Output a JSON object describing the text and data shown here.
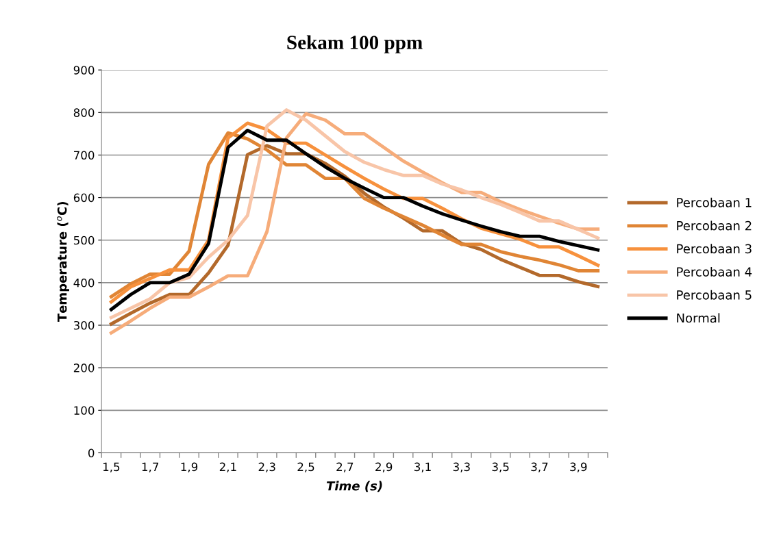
{
  "chart_data": {
    "type": "line",
    "title": "Sekam 100 ppm",
    "xlabel": "Time (s)",
    "ylabel": "Temperature ($^{o}$C)",
    "categories": [
      "1,5",
      null,
      "1,7",
      null,
      "1,9",
      null,
      "2,1",
      null,
      "2,3",
      null,
      "2,5",
      null,
      "2,7",
      null,
      "2,9",
      null,
      "3,1",
      null,
      "3,3",
      null,
      "3,5",
      null,
      "3,7",
      null,
      "3,9",
      null
    ],
    "series": [
      {
        "name": "Percobaan 1",
        "color": "#b3692b",
        "values": [
          303,
          328,
          352,
          372,
          372,
          423,
          488,
          701,
          722,
          703,
          703,
          680,
          650,
          610,
          578,
          552,
          522,
          522,
          492,
          478,
          455,
          436,
          417,
          417,
          402,
          391
        ]
      },
      {
        "name": "Percobaan 2",
        "color": "#e08535",
        "values": [
          367,
          397,
          420,
          420,
          474,
          678,
          752,
          738,
          712,
          677,
          677,
          645,
          645,
          598,
          575,
          555,
          535,
          512,
          490,
          490,
          473,
          462,
          453,
          442,
          428,
          428
        ]
      },
      {
        "name": "Percobaan 3",
        "color": "#f7913d",
        "values": [
          355,
          390,
          410,
          430,
          430,
          500,
          740,
          775,
          760,
          728,
          728,
          700,
          672,
          645,
          620,
          598,
          598,
          575,
          550,
          528,
          515,
          502,
          484,
          484,
          463,
          441
        ]
      },
      {
        "name": "Percobaan 4",
        "color": "#f6ac7a",
        "values": [
          282,
          310,
          340,
          366,
          366,
          390,
          416,
          416,
          520,
          740,
          797,
          782,
          750,
          750,
          718,
          686,
          660,
          635,
          612,
          612,
          590,
          572,
          556,
          540,
          526,
          526
        ]
      },
      {
        "name": "Percobaan 5",
        "color": "#f8c5a8",
        "values": [
          318,
          340,
          362,
          400,
          412,
          460,
          500,
          558,
          768,
          806,
          782,
          745,
          708,
          683,
          666,
          652,
          652,
          632,
          618,
          600,
          584,
          565,
          545,
          545,
          525,
          505
        ]
      },
      {
        "name": "Normal",
        "color": "#000000",
        "values": [
          337,
          372,
          400,
          400,
          420,
          492,
          718,
          758,
          735,
          735,
          703,
          672,
          645,
          622,
          600,
          600,
          580,
          562,
          547,
          533,
          520,
          509,
          509,
          497,
          487,
          477
        ]
      }
    ],
    "ylim": [
      0,
      900
    ],
    "yticks": [
      0,
      100,
      200,
      300,
      400,
      500,
      600,
      700,
      800,
      900
    ],
    "grid": "y",
    "legend": "right",
    "marker": "none",
    "line_style": "solid"
  }
}
